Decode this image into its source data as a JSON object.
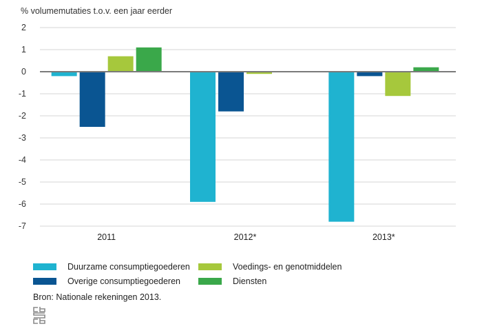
{
  "chart_data": {
    "type": "bar",
    "title": "",
    "ylabel": "% volumemutaties t.o.v. een jaar eerder",
    "xlabel": "",
    "categories": [
      "2011",
      "2012*",
      "2013*"
    ],
    "ylim": [
      -7,
      2
    ],
    "yticks": [
      2,
      1,
      0,
      -1,
      -2,
      -3,
      -4,
      -5,
      -6,
      -7
    ],
    "grid": true,
    "legend_position": "bottom",
    "series": [
      {
        "name": "Duurzame consumptiegoederen",
        "color": "#1fb3d0",
        "values": [
          -0.2,
          -5.9,
          -6.8
        ]
      },
      {
        "name": "Overige consumptiegoederen",
        "color": "#0a5592",
        "values": [
          -2.5,
          -1.8,
          -0.2
        ]
      },
      {
        "name": "Voedings- en genotmiddelen",
        "color": "#a6c83c",
        "values": [
          0.7,
          -0.1,
          -1.1
        ]
      },
      {
        "name": "Diensten",
        "color": "#3aa84a",
        "values": [
          1.1,
          0,
          0.2
        ]
      }
    ]
  },
  "source": "Bron: Nationale rekeningen 2013."
}
